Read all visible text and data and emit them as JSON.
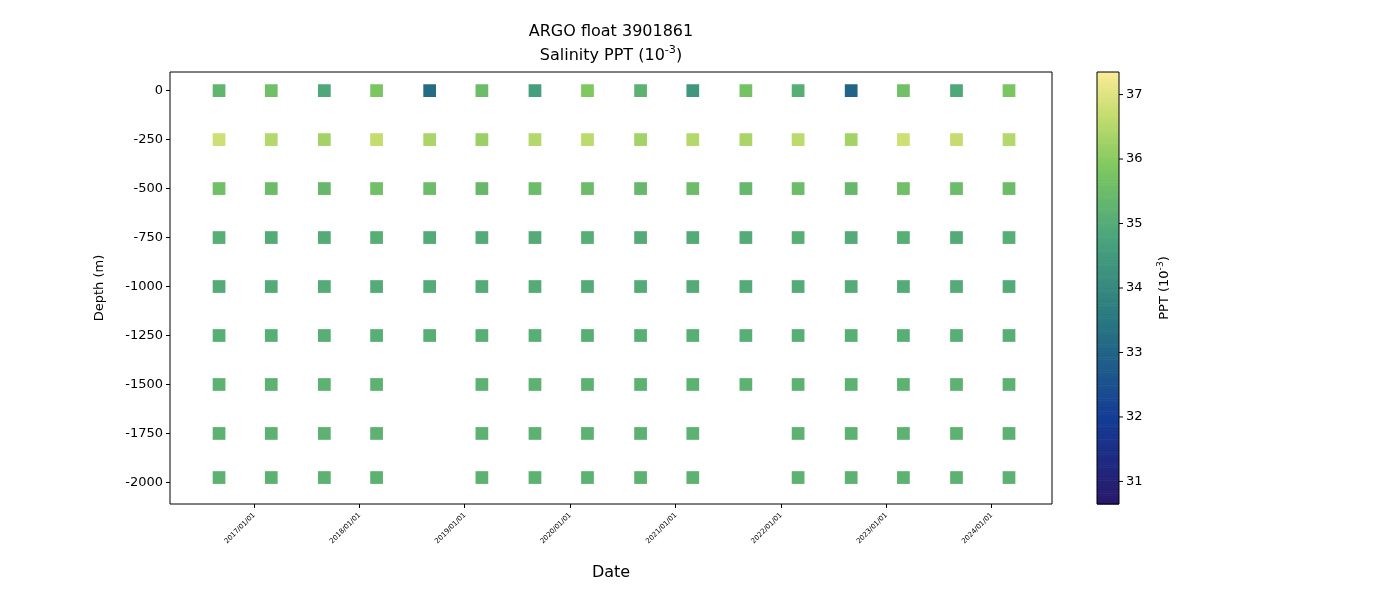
{
  "chart_data": {
    "type": "scatter",
    "title": "ARGO float 3901861",
    "subtitle": "Salinity PPT (10$^{-3}$)",
    "xlabel": "Date",
    "ylabel": "Depth (m)",
    "clabel": "PPT (10$^{-3}$)",
    "x": [
      "2016-09-01",
      "2017-03-01",
      "2017-09-01",
      "2018-03-01",
      "2018-09-01",
      "2019-03-01",
      "2019-09-01",
      "2020-03-01",
      "2020-09-01",
      "2021-03-01",
      "2021-09-01",
      "2022-03-01",
      "2022-09-01",
      "2023-03-01",
      "2023-09-01",
      "2024-03-01",
      "2016-09-01",
      "2017-03-01",
      "2017-09-01",
      "2018-03-01",
      "2018-09-01",
      "2019-03-01",
      "2019-09-01",
      "2020-03-01",
      "2020-09-01",
      "2021-03-01",
      "2021-09-01",
      "2022-03-01",
      "2022-09-01",
      "2023-03-01",
      "2023-09-01",
      "2024-03-01",
      "2016-09-01",
      "2017-03-01",
      "2017-09-01",
      "2018-03-01",
      "2018-09-01",
      "2019-03-01",
      "2019-09-01",
      "2020-03-01",
      "2020-09-01",
      "2021-03-01",
      "2021-09-01",
      "2022-03-01",
      "2022-09-01",
      "2023-03-01",
      "2023-09-01",
      "2024-03-01",
      "2016-09-01",
      "2017-03-01",
      "2017-09-01",
      "2018-03-01",
      "2018-09-01",
      "2019-03-01",
      "2019-09-01",
      "2020-03-01",
      "2020-09-01",
      "2021-03-01",
      "2021-09-01",
      "2022-03-01",
      "2022-09-01",
      "2023-03-01",
      "2023-09-01",
      "2024-03-01",
      "2016-09-01",
      "2017-03-01",
      "2017-09-01",
      "2018-03-01",
      "2018-09-01",
      "2019-03-01",
      "2019-09-01",
      "2020-03-01",
      "2020-09-01",
      "2021-03-01",
      "2021-09-01",
      "2022-03-01",
      "2022-09-01",
      "2023-03-01",
      "2023-09-01",
      "2024-03-01",
      "2016-09-01",
      "2017-03-01",
      "2017-09-01",
      "2018-03-01",
      "2018-09-01",
      "2019-03-01",
      "2019-09-01",
      "2020-03-01",
      "2020-09-01",
      "2021-03-01",
      "2021-09-01",
      "2022-03-01",
      "2022-09-01",
      "2023-03-01",
      "2023-09-01",
      "2024-03-01",
      "2016-09-01",
      "2017-03-01",
      "2017-09-01",
      "2018-03-01",
      "2019-03-01",
      "2019-09-01",
      "2020-03-01",
      "2020-09-01",
      "2021-03-01",
      "2021-09-01",
      "2022-03-01",
      "2022-09-01",
      "2023-03-01",
      "2023-09-01",
      "2024-03-01",
      "2016-09-01",
      "2017-03-01",
      "2017-09-01",
      "2018-03-01",
      "2019-03-01",
      "2019-09-01",
      "2020-03-01",
      "2020-09-01",
      "2021-03-01",
      "2022-03-01",
      "2022-09-01",
      "2023-03-01",
      "2023-09-01",
      "2024-03-01",
      "2016-09-01",
      "2017-03-01",
      "2017-09-01",
      "2018-03-01",
      "2019-03-01",
      "2019-09-01",
      "2020-03-01",
      "2020-09-01",
      "2021-03-01",
      "2022-03-01",
      "2022-09-01",
      "2023-03-01",
      "2023-09-01",
      "2024-03-01"
    ],
    "values": [
      0,
      0,
      0,
      0,
      0,
      0,
      0,
      0,
      0,
      0,
      0,
      0,
      0,
      0,
      0,
      0,
      -250,
      -250,
      -250,
      -250,
      -250,
      -250,
      -250,
      -250,
      -250,
      -250,
      -250,
      -250,
      -250,
      -250,
      -250,
      -250,
      -500,
      -500,
      -500,
      -500,
      -500,
      -500,
      -500,
      -500,
      -500,
      -500,
      -500,
      -500,
      -500,
      -500,
      -500,
      -500,
      -750,
      -750,
      -750,
      -750,
      -750,
      -750,
      -750,
      -750,
      -750,
      -750,
      -750,
      -750,
      -750,
      -750,
      -750,
      -750,
      -1000,
      -1000,
      -1000,
      -1000,
      -1000,
      -1000,
      -1000,
      -1000,
      -1000,
      -1000,
      -1000,
      -1000,
      -1000,
      -1000,
      -1000,
      -1000,
      -1250,
      -1250,
      -1250,
      -1250,
      -1250,
      -1250,
      -1250,
      -1250,
      -1250,
      -1250,
      -1250,
      -1250,
      -1250,
      -1250,
      -1250,
      -1250,
      -1500,
      -1500,
      -1500,
      -1500,
      -1500,
      -1500,
      -1500,
      -1500,
      -1500,
      -1500,
      -1500,
      -1500,
      -1500,
      -1500,
      -1500,
      -1750,
      -1750,
      -1750,
      -1750,
      -1750,
      -1750,
      -1750,
      -1750,
      -1750,
      -1750,
      -1750,
      -1750,
      -1750,
      -1750,
      -1975,
      -1975,
      -1975,
      -1975,
      -1975,
      -1975,
      -1975,
      -1975,
      -1975,
      -1975,
      -1975,
      -1975,
      -1975,
      -1975
    ],
    "cvalues": [
      35.3,
      35.6,
      34.9,
      35.8,
      33.2,
      35.5,
      34.6,
      35.9,
      35.2,
      34.4,
      35.7,
      35.1,
      33.0,
      35.6,
      34.9,
      35.8,
      36.8,
      36.5,
      36.3,
      36.7,
      36.4,
      36.2,
      36.5,
      36.6,
      36.3,
      36.5,
      36.4,
      36.6,
      36.3,
      36.8,
      36.7,
      36.5,
      35.6,
      35.5,
      35.4,
      35.6,
      35.5,
      35.4,
      35.5,
      35.5,
      35.4,
      35.5,
      35.4,
      35.5,
      35.4,
      35.6,
      35.5,
      35.5,
      35.1,
      35,
      35,
      35.1,
      35,
      35,
      35,
      35.1,
      35,
      35,
      35,
      35.1,
      35,
      35.1,
      35,
      35.1,
      35,
      35,
      35,
      35,
      35,
      35,
      35,
      35,
      35,
      35,
      35,
      35,
      35,
      35,
      35,
      35,
      35.1,
      35.1,
      35.1,
      35.1,
      35.1,
      35.1,
      35.1,
      35.1,
      35.1,
      35.1,
      35.1,
      35.1,
      35.1,
      35.1,
      35.1,
      35.1,
      35.2,
      35.2,
      35.2,
      35.2,
      35.2,
      35.2,
      35.2,
      35.2,
      35.2,
      35.2,
      35.2,
      35.2,
      35.2,
      35.2,
      35.2,
      35.2,
      35.2,
      35.2,
      35.2,
      35.2,
      35.2,
      35.2,
      35.2,
      35.2,
      35.2,
      35.2,
      35.2,
      35.2,
      35.2,
      35.2,
      35.2,
      35.2,
      35.2,
      35.2,
      35.2,
      35.2,
      35.2,
      35.2,
      35.2,
      35.2,
      35.2,
      35.2,
      35.2
    ],
    "xlim": [
      "2016-03-15",
      "2024-07-28"
    ],
    "xticks": [
      {
        "value": "2017-01-01",
        "label": "2017/01/01"
      },
      {
        "value": "2018-01-01",
        "label": "2018/01/01"
      },
      {
        "value": "2019-01-01",
        "label": "2019/01/01"
      },
      {
        "value": "2020-01-01",
        "label": "2020/01/01"
      },
      {
        "value": "2021-01-01",
        "label": "2021/01/01"
      },
      {
        "value": "2022-01-01",
        "label": "2022/01/01"
      },
      {
        "value": "2023-01-01",
        "label": "2023/01/01"
      },
      {
        "value": "2024-01-01",
        "label": "2024/01/01"
      }
    ],
    "ylim": [
      -2110,
      95
    ],
    "yticks": [
      0,
      -250,
      -500,
      -750,
      -1000,
      -1250,
      -1500,
      -1750,
      -2000
    ],
    "clim": [
      30.65,
      37.35
    ],
    "cticks": [
      31,
      32,
      33,
      34,
      35,
      36,
      37
    ],
    "marker": "square",
    "legend": false,
    "grid": false
  }
}
